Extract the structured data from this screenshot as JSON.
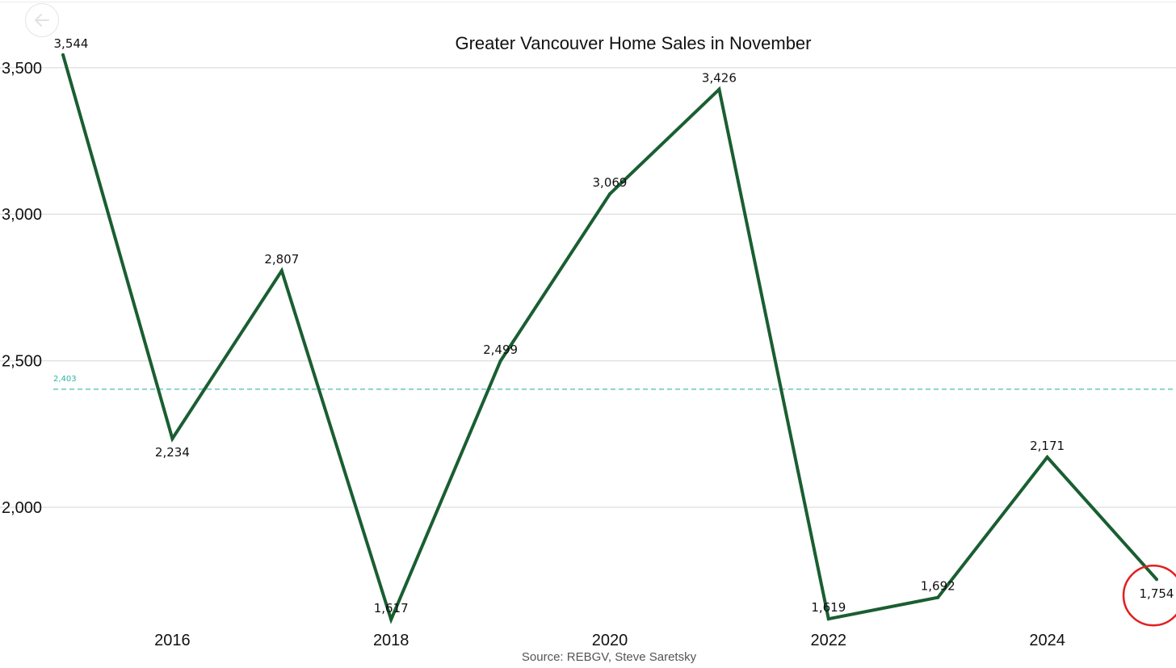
{
  "chart_data": {
    "type": "line",
    "title": "Greater Vancouver Home Sales in November",
    "source": "Source: REBGV, Steve Saretsky",
    "x": [
      2015,
      2016,
      2017,
      2018,
      2019,
      2020,
      2021,
      2022,
      2023,
      2024,
      2025
    ],
    "series": [
      {
        "values": [
          3544,
          2234,
          2807,
          1617,
          2499,
          3069,
          3426,
          1619,
          1692,
          2171,
          1754
        ],
        "labels": [
          "3,544",
          "2,234",
          "2,807",
          "1,617",
          "2,499",
          "3,069",
          "3,426",
          "1,619",
          "1,692",
          "2,171",
          "1,754"
        ],
        "color": "#1a5e32"
      }
    ],
    "average": {
      "value": 2403,
      "label": "2,403",
      "color": "#8fd3cf"
    },
    "highlight": {
      "x": 2025,
      "value": 1754,
      "color": "#e02020"
    },
    "x_ticks": [
      2016,
      2018,
      2020,
      2022,
      2024
    ],
    "x_tick_labels": [
      "2016",
      "2018",
      "2020",
      "2022",
      "2024"
    ],
    "y_ticks": [
      2000,
      2500,
      3000,
      3500
    ],
    "y_tick_labels": [
      "2,000",
      "2,500",
      "3,000",
      "3,500"
    ],
    "grid": true,
    "legend": "none"
  },
  "nav": {
    "back_icon": "back-arrow-icon"
  }
}
